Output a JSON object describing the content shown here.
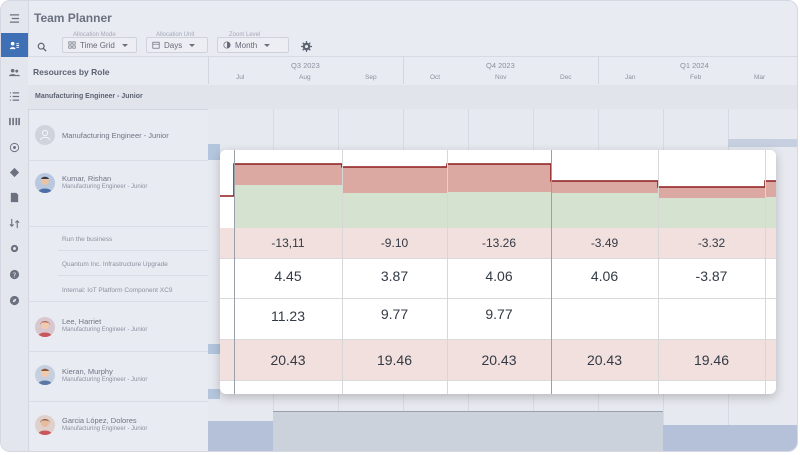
{
  "app": {
    "title": "Team Planner"
  },
  "toolbar": {
    "allocation_mode_label": "Allocation Mode",
    "allocation_mode_value": "Time Grid",
    "allocation_unit_label": "Allocation Unit",
    "allocation_unit_value": "Days",
    "zoom_level_label": "Zoom Level",
    "zoom_level_value": "Month"
  },
  "rail_icons": [
    "collapse-menu-icon",
    "resources-icon",
    "team-icon",
    "list-icon",
    "columns-icon",
    "target-icon",
    "tag-icon",
    "document-icon",
    "transfer-icon",
    "settings-icon",
    "help-icon",
    "compass-icon"
  ],
  "grid": {
    "side_title": "Resources by Role",
    "quarters": [
      "Q3 2023",
      "Q4 2023",
      "Q1 2024"
    ],
    "months": [
      "Jul",
      "Aug",
      "Sep",
      "Oct",
      "Nov",
      "Dec",
      "Jan",
      "Feb",
      "Mar"
    ],
    "group_label": "Manufacturing Engineer - Junior"
  },
  "resources": [
    {
      "name": "Manufacturing Engineer - Junior",
      "role": ""
    },
    {
      "name": "Kumar, Rishan",
      "role": "Manufacturing Engineer - Junior"
    },
    {
      "name": "Lee, Harriet",
      "role": "Manufacturing Engineer - Junior"
    },
    {
      "name": "Kieran, Murphy",
      "role": "Manufacturing Engineer - Junior"
    },
    {
      "name": "Garcia López, Dolores",
      "role": "Manufacturing Engineer - Junior"
    }
  ],
  "tasks": [
    "Run the business",
    "Quantum Inc. Infrastructure Upgrade",
    "Internal: IoT Platform Component XC9"
  ],
  "popup": {
    "rows": [
      [
        "-13,11",
        "-9.10",
        "-13.26",
        "-3.49",
        "-3.32"
      ],
      [
        "4.45",
        "3.87",
        "4.06",
        "4.06",
        "-3.87"
      ],
      [
        "11.23",
        "9.77",
        "9.77",
        "",
        ""
      ],
      [
        "20.43",
        "19.46",
        "20.43",
        "20.43",
        "19.46"
      ]
    ]
  },
  "colors": {
    "accent": "#3f6fb5",
    "over_red": "#dca8a2",
    "under_green": "#d4e2cf",
    "row_pink": "#f2e0de",
    "line_red": "#8b1c1c"
  }
}
